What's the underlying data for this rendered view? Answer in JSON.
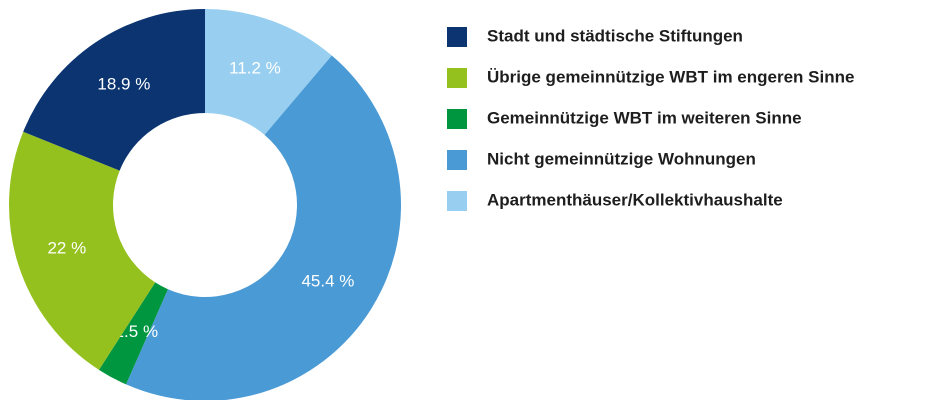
{
  "chart_data": {
    "type": "donut",
    "categories": [
      "Stadt und städtische Stiftungen",
      "Übrige gemeinnützige WBT im engeren Sinne",
      "Gemeinnützige WBT im weiteren Sinne",
      "Nicht gemeinnützige Wohnungen",
      "Apartmenthäuser/Kollektivhaushalte"
    ],
    "values": [
      18.9,
      22,
      2.5,
      45.4,
      11.2
    ],
    "value_labels": [
      "18.9 %",
      "22 %",
      "2.5 %",
      "45.4 %",
      "11.2 %"
    ],
    "colors": [
      "#0b3470",
      "#95c11f",
      "#00963f",
      "#4a9ad5",
      "#98cff0"
    ],
    "legend": "right"
  }
}
